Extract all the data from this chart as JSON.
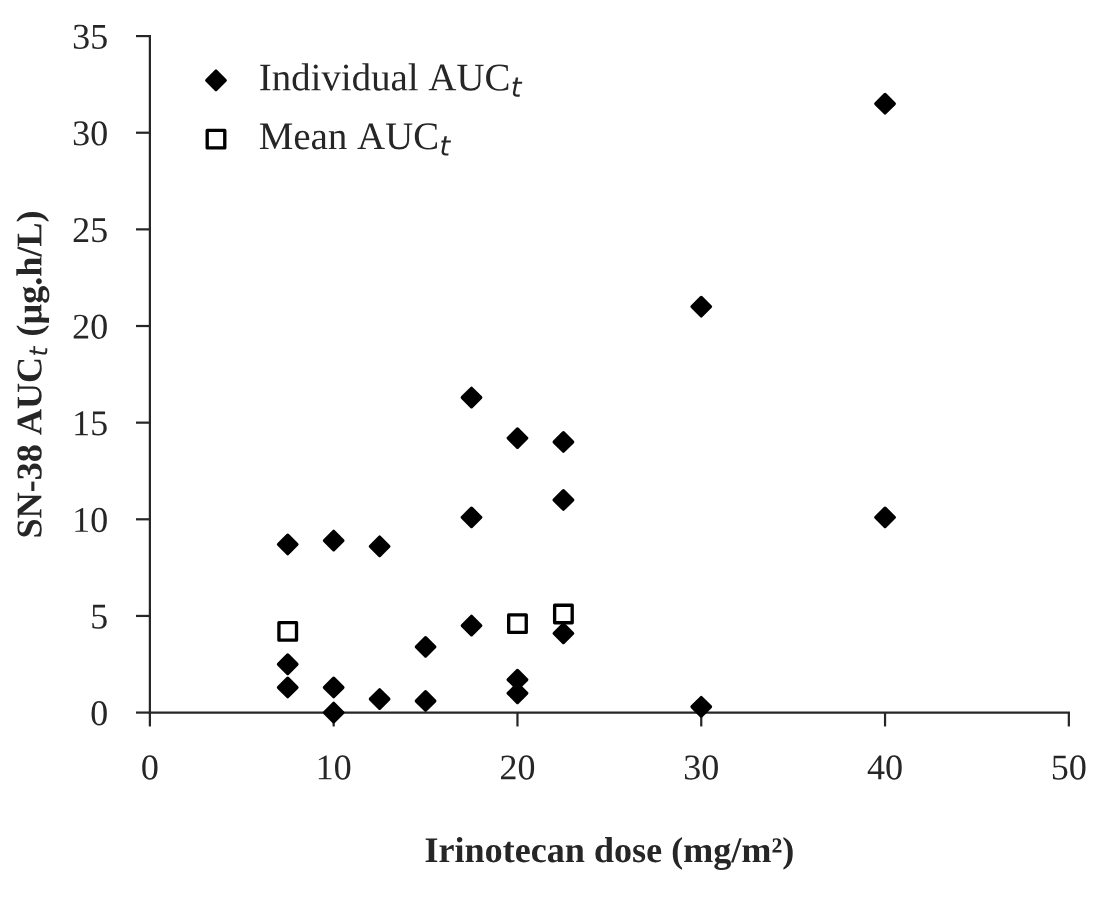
{
  "chart_data": {
    "type": "scatter",
    "xlabel": "Irinotecan dose (mg/m²)",
    "ylabel": "SN-38 AUC$_{t}$ (µg.h/L)",
    "series": [
      {
        "name": "Individual AUC$_{t}$",
        "color": "#000000",
        "marker": "diamond",
        "x": [
          7.5,
          7.5,
          7.5,
          10,
          10,
          10,
          12.5,
          12.5,
          15,
          15,
          17.5,
          17.5,
          17.5,
          20,
          20,
          20,
          22.5,
          22.5,
          22.5,
          30,
          30,
          40,
          40
        ],
        "values": [
          8.7,
          2.5,
          1.3,
          8.9,
          1.3,
          0,
          8.6,
          0.7,
          3.4,
          0.6,
          16.3,
          10.1,
          4.5,
          14.2,
          1.7,
          1.0,
          14.0,
          11.0,
          4.1,
          21.0,
          0.3,
          31.5,
          10.1
        ]
      },
      {
        "name": "Mean AUC$_{t}$",
        "color": "#000000",
        "marker": "square",
        "x": [
          7.5,
          20,
          22.5
        ],
        "values": [
          4.2,
          4.6,
          5.1
        ]
      }
    ],
    "xlim": [
      0,
      50
    ],
    "xticks": [
      0,
      10,
      20,
      30,
      40,
      50
    ],
    "ylim": [
      0,
      35
    ],
    "yticks": [
      0,
      5,
      10,
      15,
      20,
      25,
      30,
      35
    ],
    "grid": false,
    "legend": "top left"
  }
}
